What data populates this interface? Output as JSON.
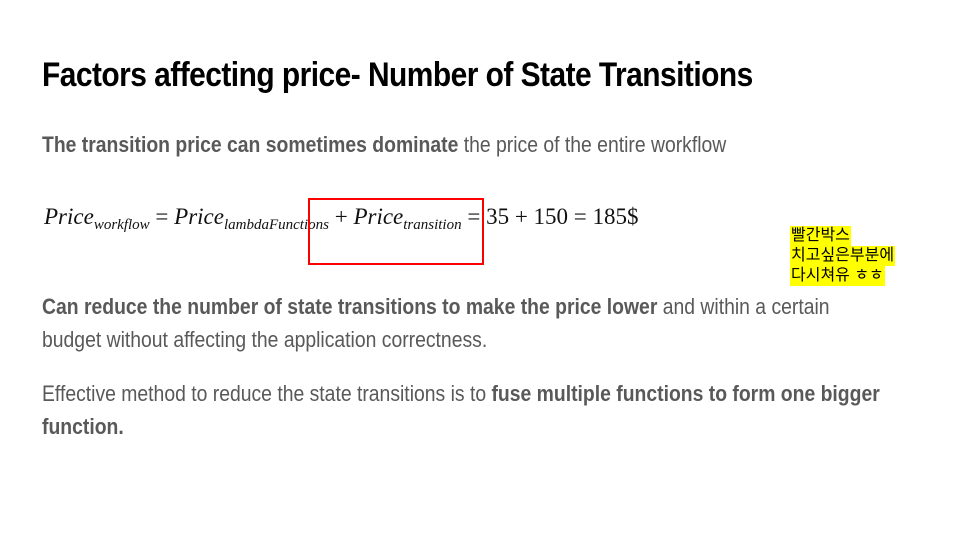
{
  "title": "Factors affecting price- Number of State Transitions",
  "p1": {
    "bold": "The transition price can sometimes dominate",
    "rest": " the price of the entire workflow"
  },
  "formula": {
    "lhs": "Price",
    "lhs_sub": "workflow",
    "eq1": " = ",
    "t1": "Price",
    "t1_sub": "lambdaFunctions",
    "plus": " + ",
    "t2": "Price",
    "t2_sub": "transition",
    "rhs": " = 35 + 150 = 185$"
  },
  "p2": {
    "bold": "Can reduce the number of state transitions to make the price lower",
    "rest": " and within a certain budget without affecting the application correctness."
  },
  "p3": {
    "rest": "Effective method to reduce the state transitions is to ",
    "bold": "fuse multiple functions to form one bigger function."
  },
  "annotation": {
    "lines": [
      "빨간박스",
      "치고싶은부분에",
      "다시쳐유 ㅎㅎ"
    ],
    "highlight_color": "#ffff00",
    "box_color": "#ff0000"
  }
}
